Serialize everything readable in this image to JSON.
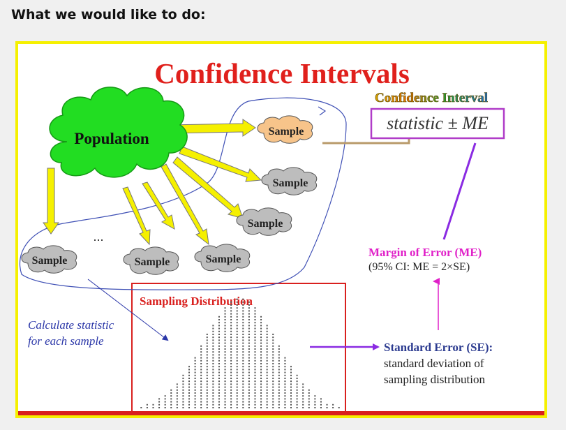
{
  "page": {
    "heading": "What we would like to do:"
  },
  "slide": {
    "title": "Confidence Intervals",
    "ci_banner": "Confidence Interval",
    "formula": "statistic ± ME",
    "population_label": "Population",
    "sample_label": "Sample",
    "ellipsis": "...",
    "calc_note_lines": [
      "Calculate statistic",
      "for each sample"
    ],
    "sampling_distribution_label": "Sampling Distribution",
    "me_title": "Margin of Error (ME)",
    "me_sub": "(95% CI: ME = 2×SE)",
    "se_title": "Standard Error (SE):",
    "se_lines": [
      "standard deviation of",
      "sampling distribution"
    ]
  },
  "colors": {
    "title_red": "#e0201c",
    "population_green": "#22dd22",
    "arrow_yellow": "#f5f000",
    "arrow_outline": "#777777",
    "sample_gray": "#bdbdbd",
    "sample_orange": "#f7c48a",
    "magenta": "#e020c8",
    "purple": "#8a2be2",
    "navy": "#2b3a8f",
    "blue_note": "#2a36a8"
  }
}
